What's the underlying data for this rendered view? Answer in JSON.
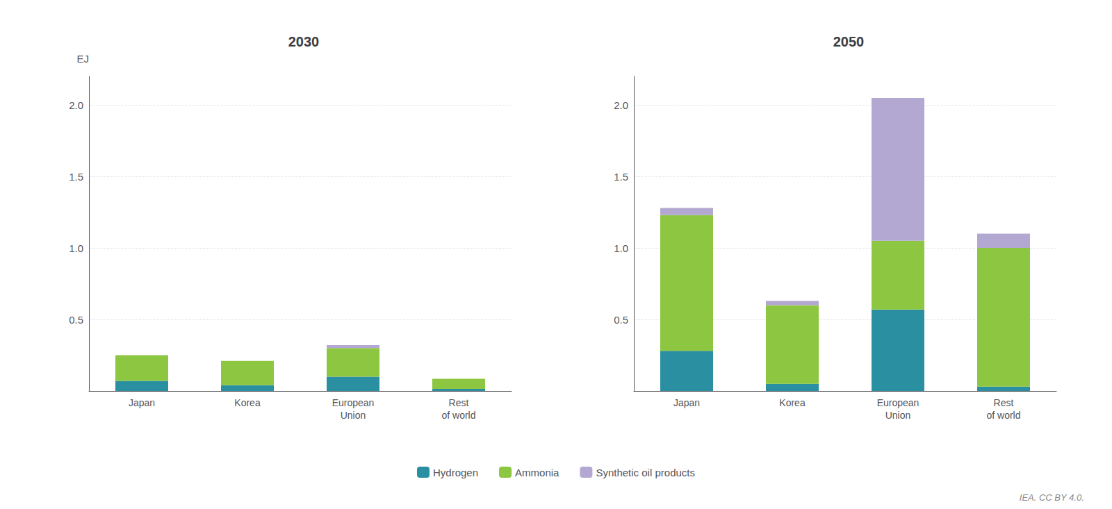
{
  "chart_data": [
    {
      "type": "bar",
      "title": "2030",
      "categories": [
        "Japan",
        "Korea",
        "European\nUnion",
        "Rest\nof world"
      ],
      "series": [
        {
          "name": "Hydrogen",
          "color": "#2a8fa0",
          "values": [
            0.07,
            0.04,
            0.1,
            0.015
          ]
        },
        {
          "name": "Ammonia",
          "color": "#8dc641",
          "values": [
            0.18,
            0.17,
            0.2,
            0.07
          ]
        },
        {
          "name": "Synthetic oil products",
          "color": "#b3a8d2",
          "values": [
            0.0,
            0.0,
            0.02,
            0.0
          ]
        }
      ],
      "ylabel": "EJ",
      "ylim": [
        0,
        2.2
      ],
      "yticks": [
        0.5,
        {
          "value": 1.0,
          "label": "1.0"
        },
        1.5,
        {
          "value": 2.0,
          "label": "2.0"
        }
      ],
      "grid": true,
      "stacked": true,
      "legend": "bottom"
    },
    {
      "type": "bar",
      "title": "2050",
      "categories": [
        "Japan",
        "Korea",
        "European\nUnion",
        "Rest\nof world"
      ],
      "series": [
        {
          "name": "Hydrogen",
          "color": "#2a8fa0",
          "values": [
            0.28,
            0.05,
            0.57,
            0.03
          ]
        },
        {
          "name": "Ammonia",
          "color": "#8dc641",
          "values": [
            0.95,
            0.55,
            0.48,
            0.97
          ]
        },
        {
          "name": "Synthetic oil products",
          "color": "#b3a8d2",
          "values": [
            0.05,
            0.03,
            1.0,
            0.1
          ]
        }
      ],
      "ylim": [
        0,
        2.2
      ],
      "yticks": [
        0.5,
        {
          "value": 1.0,
          "label": "1.0"
        },
        1.5,
        {
          "value": 2.0,
          "label": "2.0"
        }
      ],
      "grid": true,
      "stacked": true,
      "legend": "bottom",
      "annotations": [
        "IEA. CC BY 4.0."
      ]
    }
  ]
}
